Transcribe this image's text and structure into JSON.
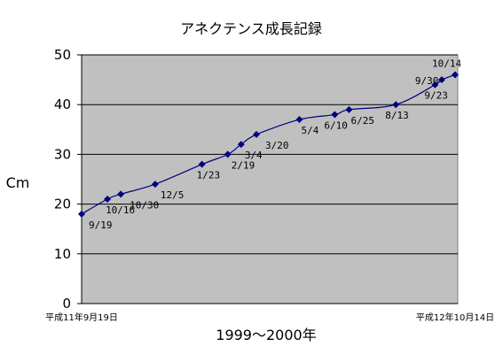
{
  "chart_data": {
    "type": "line",
    "title": "アネクテンス成長記録",
    "xlabel": "1999～2000年",
    "ylabel": "Cm",
    "x_start_label": "平成11年9月19日",
    "x_end_label": "平成12年10月14日",
    "ylim": [
      0,
      50
    ],
    "yticks": [
      "0",
      "10",
      "20",
      "30",
      "40",
      "50"
    ],
    "grid": true,
    "series_color": "#000080",
    "plot_bg": "#c0c0c0",
    "points": [
      {
        "date": "1999-09-19",
        "label": "9/19",
        "value": 18
      },
      {
        "date": "1999-10-16",
        "label": "10/16",
        "value": 21
      },
      {
        "date": "1999-10-30",
        "label": "10/30",
        "value": 22
      },
      {
        "date": "1999-12-05",
        "label": "12/5",
        "value": 24
      },
      {
        "date": "2000-01-23",
        "label": "1/23",
        "value": 28
      },
      {
        "date": "2000-02-19",
        "label": "2/19",
        "value": 30
      },
      {
        "date": "2000-03-04",
        "label": "3/4",
        "value": 32
      },
      {
        "date": "2000-03-20",
        "label": "3/20",
        "value": 34
      },
      {
        "date": "2000-05-04",
        "label": "5/4",
        "value": 37
      },
      {
        "date": "2000-06-10",
        "label": "6/10",
        "value": 38
      },
      {
        "date": "2000-06-25",
        "label": "6/25",
        "value": 39
      },
      {
        "date": "2000-08-13",
        "label": "8/13",
        "value": 40
      },
      {
        "date": "2000-09-23",
        "label": "9/23",
        "value": 44
      },
      {
        "date": "2000-09-30",
        "label": "9/30",
        "value": 45
      },
      {
        "date": "2000-10-14",
        "label": "10/14",
        "value": 46
      }
    ]
  }
}
